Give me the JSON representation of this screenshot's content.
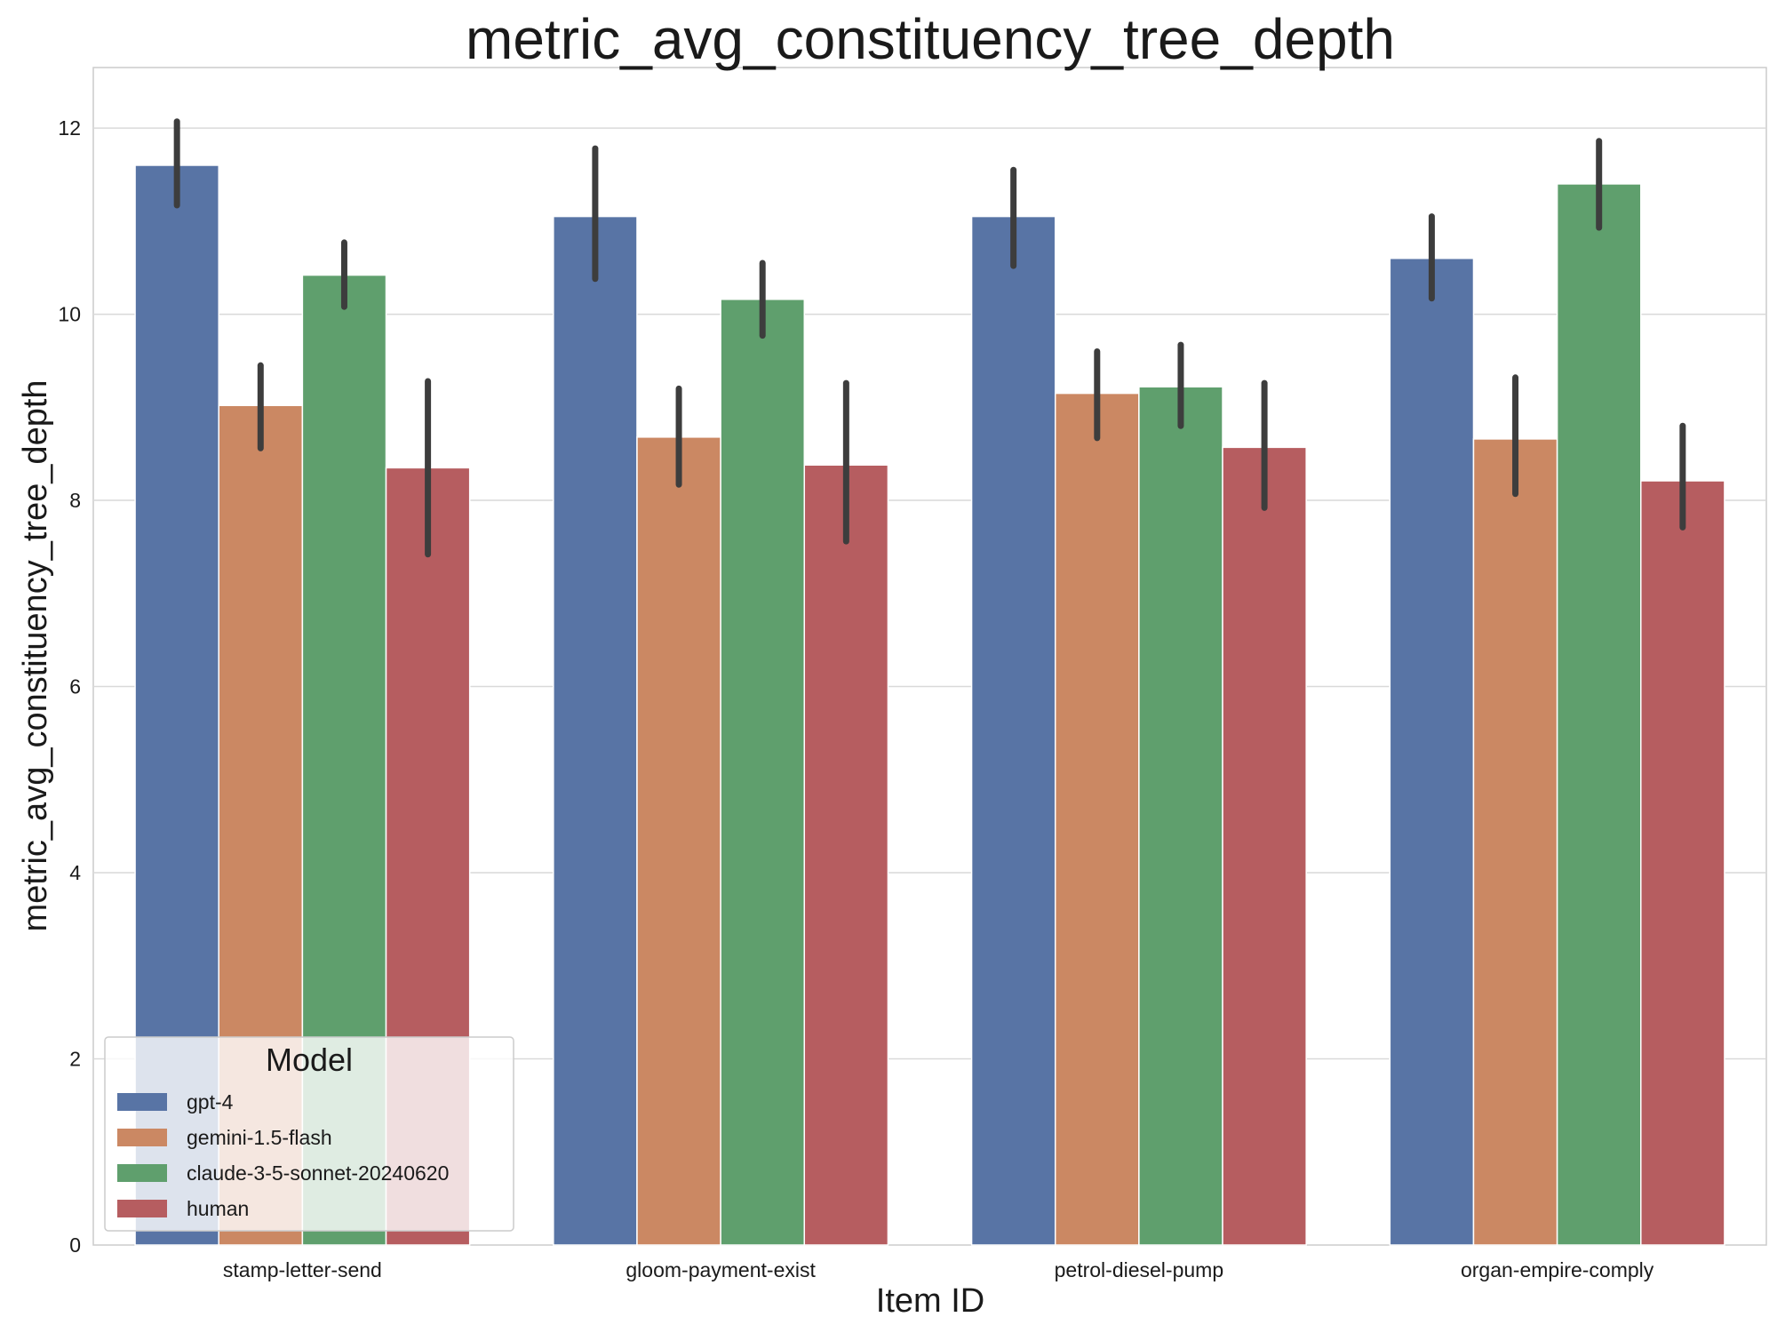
{
  "chart_data": {
    "type": "bar",
    "title": "metric_avg_constituency_tree_depth",
    "xlabel": "Item ID",
    "ylabel": "metric_avg_constituency_tree_depth",
    "ylim": [
      0,
      12.65
    ],
    "yticks": [
      0,
      2,
      4,
      6,
      8,
      10,
      12
    ],
    "ytick_labels": [
      "0",
      "2",
      "4",
      "6",
      "8",
      "10",
      "12"
    ],
    "grid": true,
    "legend": {
      "title": "Model",
      "placement": "lower-left"
    },
    "categories": [
      "stamp-letter-send",
      "gloom-payment-exist",
      "petrol-diesel-pump",
      "organ-empire-comply"
    ],
    "series": [
      {
        "name": "gpt-4",
        "color": "#5874a5",
        "values": [
          11.6,
          11.05,
          11.05,
          10.6
        ],
        "err_low": [
          11.17,
          10.38,
          10.52,
          10.17
        ],
        "err_high": [
          12.07,
          11.78,
          11.55,
          11.05
        ]
      },
      {
        "name": "gemini-1.5-flash",
        "color": "#cb8863",
        "values": [
          9.02,
          8.68,
          9.15,
          8.66
        ],
        "err_low": [
          8.56,
          8.17,
          8.67,
          8.07
        ],
        "err_high": [
          9.45,
          9.2,
          9.6,
          9.32
        ]
      },
      {
        "name": "claude-3-5-sonnet-20240620",
        "color": "#5f9f6d",
        "values": [
          10.42,
          10.16,
          9.22,
          11.4
        ],
        "err_low": [
          10.08,
          9.77,
          8.8,
          10.93
        ],
        "err_high": [
          10.77,
          10.55,
          9.67,
          11.86
        ]
      },
      {
        "name": "human",
        "color": "#b65d60",
        "values": [
          8.35,
          8.38,
          8.57,
          8.21
        ],
        "err_low": [
          7.42,
          7.56,
          7.92,
          7.71
        ],
        "err_high": [
          9.28,
          9.26,
          9.26,
          8.8
        ]
      }
    ]
  }
}
